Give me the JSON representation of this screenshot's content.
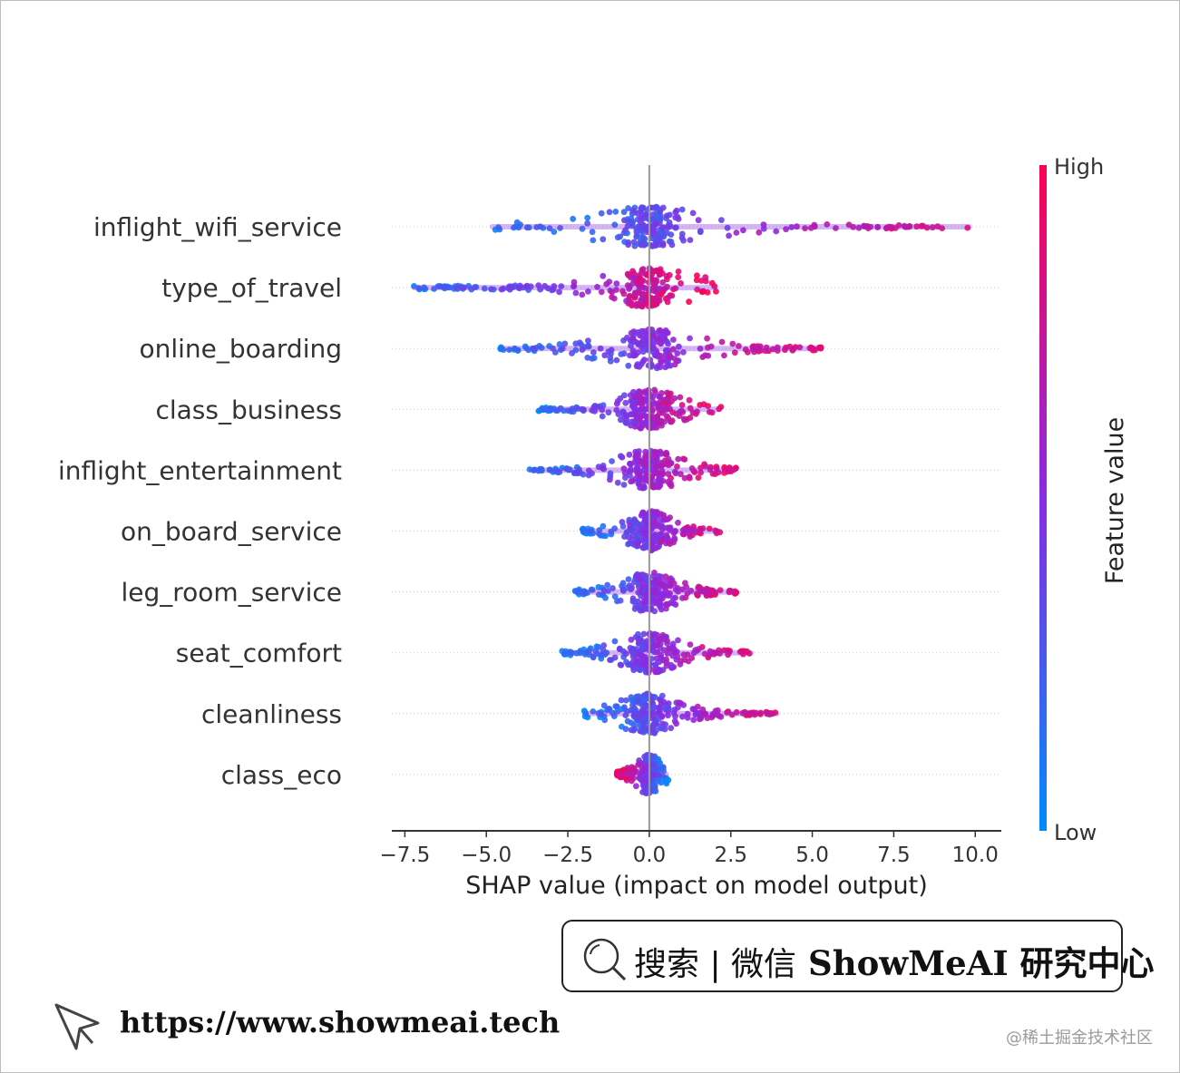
{
  "chart_data": {
    "type": "scatter",
    "subtype": "shap-beeswarm",
    "title": "",
    "xlabel": "SHAP value (impact on model output)",
    "ylabel": "",
    "xlim": [
      -7.9,
      10.8
    ],
    "xticks": [
      -7.5,
      -5.0,
      -2.5,
      0.0,
      2.5,
      5.0,
      7.5,
      10.0
    ],
    "xtick_labels": [
      "−7.5",
      "−5.0",
      "−2.5",
      "0.0",
      "2.5",
      "5.0",
      "7.5",
      "10.0"
    ],
    "colorbar": {
      "label": "Feature value",
      "high_label": "High",
      "low_label": "Low",
      "high_color": "#ff0052",
      "mid_color": "#8a2be2",
      "low_color": "#008bfb"
    },
    "features": [
      {
        "name": "inflight_wifi_service",
        "min": -4.9,
        "max": 9.9
      },
      {
        "name": "type_of_travel",
        "min": -7.3,
        "max": 2.1
      },
      {
        "name": "online_boarding",
        "min": -4.6,
        "max": 5.3
      },
      {
        "name": "class_business",
        "min": -3.4,
        "max": 2.2
      },
      {
        "name": "inflight_entertainment",
        "min": -3.7,
        "max": 2.7
      },
      {
        "name": "on_board_service",
        "min": -2.1,
        "max": 2.2
      },
      {
        "name": "leg_room_service",
        "min": -2.3,
        "max": 2.7
      },
      {
        "name": "seat_comfort",
        "min": -2.7,
        "max": 3.2
      },
      {
        "name": "cleanliness",
        "min": -2.0,
        "max": 4.0
      },
      {
        "name": "class_eco",
        "min": -1.0,
        "max": 0.6
      }
    ]
  },
  "search_box": {
    "text": "搜索 | 微信",
    "brand": "ShowMeAI 研究中心"
  },
  "footer": {
    "url": "https://www.showmeai.tech",
    "watermark": "@稀土掘金技术社区"
  }
}
